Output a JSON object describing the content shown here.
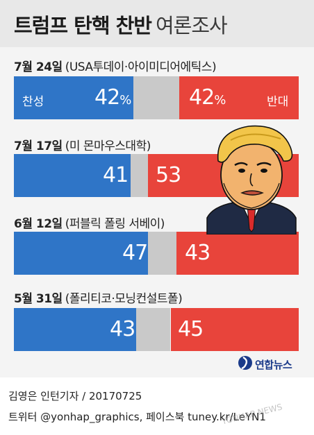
{
  "title": {
    "main": "트럼프 탄핵 찬반",
    "sub": "여론조사"
  },
  "legend": {
    "support": "찬성",
    "oppose": "반대"
  },
  "colors": {
    "support": "#2f75c7",
    "undecided": "#c9c9c9",
    "oppose": "#e8443b",
    "header_bg": "#e8e8e8"
  },
  "illustration": "trump-caricature",
  "logo": {
    "icon": "yonhap-logo-icon",
    "text": "연합뉴스"
  },
  "credit": {
    "line1": "김영은 인턴기자 / 20170725",
    "line2": "트위터 @yonhap_graphics, 페이스북 tuney.kr/LeYN1"
  },
  "watermark": "YONHAP NEWS",
  "chart_data": {
    "type": "bar",
    "orientation": "horizontal-stacked",
    "unit": "%",
    "categories": [
      "7월 24일",
      "7월 17일",
      "6월 12일",
      "5월 31일"
    ],
    "sources": [
      "USA투데이·아이미디어에틱스",
      "미 몬마우스대학",
      "퍼블릭 폴링 서베이",
      "폴리티코·모닝컨설트폴"
    ],
    "series": [
      {
        "name": "찬성",
        "values": [
          42,
          41,
          47,
          43
        ]
      },
      {
        "name": "반대",
        "values": [
          42,
          53,
          43,
          45
        ]
      }
    ],
    "value_labels": [
      {
        "support": "42",
        "oppose": "42",
        "percent_sign": "%"
      },
      {
        "support": "41",
        "oppose": "53"
      },
      {
        "support": "47",
        "oppose": "43"
      },
      {
        "support": "43",
        "oppose": "45"
      }
    ],
    "xlim": [
      0,
      100
    ]
  }
}
